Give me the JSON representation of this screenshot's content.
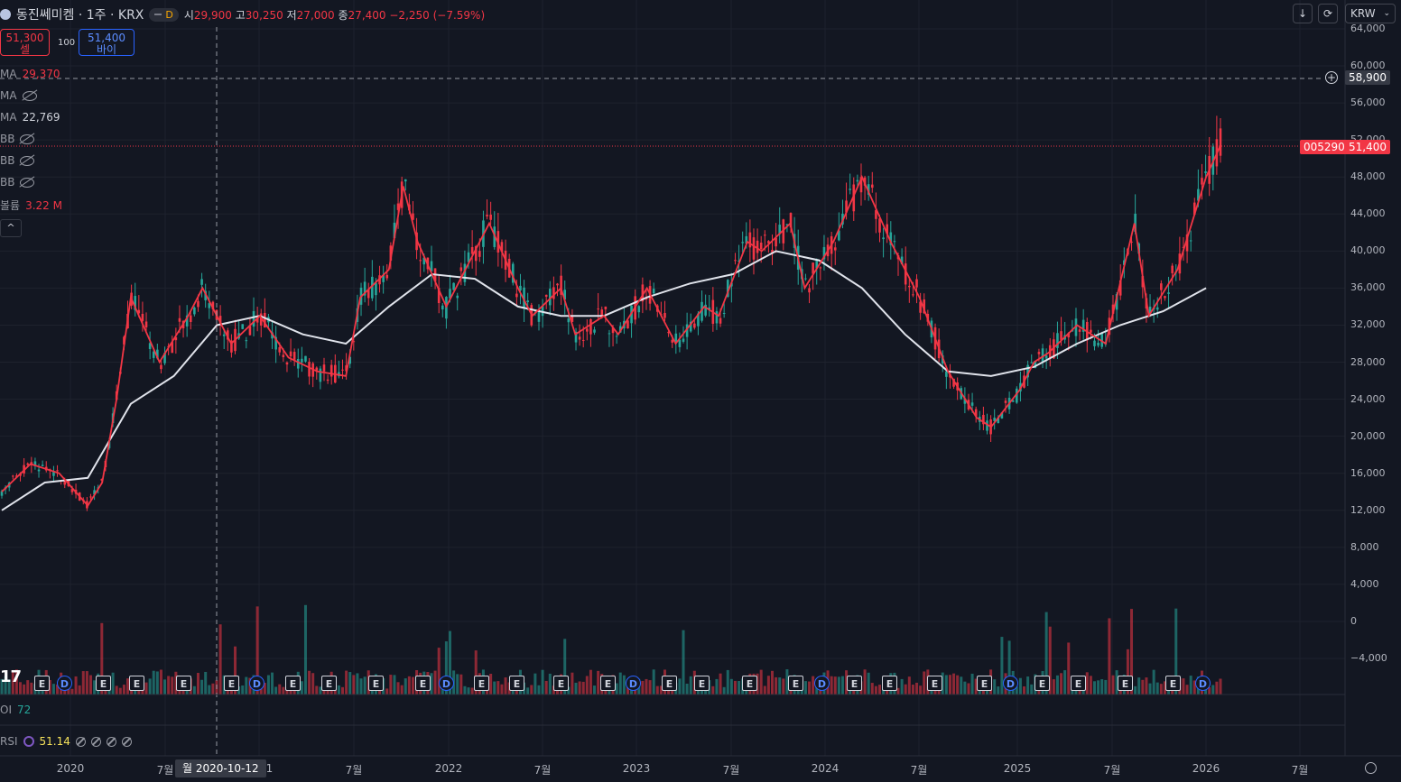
{
  "header": {
    "symbol": "동진쎄미켐 · 1주 · KRX",
    "interval_badge": "D",
    "open_label": "시",
    "open": "29,900",
    "high_label": "고",
    "high": "30,250",
    "low_label": "저",
    "low": "27,000",
    "close_label": "종",
    "close": "27,400",
    "change": "−2,250 (−7.59%)"
  },
  "trade": {
    "sell_price": "51,300",
    "sell_label": "셀",
    "spread": "100",
    "buy_price": "51,400",
    "buy_label": "바이"
  },
  "indicators": [
    {
      "name": "MA",
      "value": "29,370",
      "color": "#f23645",
      "visible": true
    },
    {
      "name": "MA",
      "value": "",
      "visible": false
    },
    {
      "name": "MA",
      "value": "22,769",
      "color": "#d1d4dc",
      "visible": true
    },
    {
      "name": "BB",
      "value": "",
      "visible": false
    },
    {
      "name": "BB",
      "value": "",
      "visible": false
    },
    {
      "name": "BB",
      "value": "",
      "visible": false
    },
    {
      "name": "볼륨",
      "value": "3.22 M",
      "color": "#f23645",
      "visible": true
    }
  ],
  "toolbar": {
    "currency": "KRW"
  },
  "price_tags": {
    "crosshair_price": "58,900",
    "symbol_code": "005290",
    "last_price": "51,400"
  },
  "crosshair_date": "월 2020-10-12",
  "panes": {
    "oi_label": "OI",
    "oi_value": "72",
    "rsi_label": "RSI",
    "rsi_value": "51.14"
  },
  "colors": {
    "up": "#26a69a",
    "down": "#f23645",
    "ma_fast": "#f23645",
    "ma_slow": "#e0e3eb",
    "background": "#131722"
  },
  "chart_data": {
    "type": "candlestick",
    "y_axis_ticks": [
      "64,000",
      "60,000",
      "56,000",
      "52,000",
      "48,000",
      "44,000",
      "40,000",
      "36,000",
      "32,000",
      "28,000",
      "24,000",
      "20,000",
      "16,000",
      "12,000",
      "8,000",
      "4,000",
      "0",
      "−4,000"
    ],
    "x_axis_ticks": [
      "2020",
      "7월",
      "2021",
      "7월",
      "2022",
      "7월",
      "2023",
      "7월",
      "2024",
      "7월",
      "2025",
      "7월",
      "2026",
      "7월"
    ],
    "ylim": [
      -4000,
      64000
    ],
    "price_series_ma_fast": [
      [
        "2020-01",
        14000
      ],
      [
        "2020-03",
        17000
      ],
      [
        "2020-05",
        16000
      ],
      [
        "2020-07",
        12500
      ],
      [
        "2020-08",
        15000
      ],
      [
        "2020-09",
        24000
      ],
      [
        "2020-10",
        35000
      ],
      [
        "2020-12",
        28000
      ],
      [
        "2021-02",
        33000
      ],
      [
        "2021-03",
        36000
      ],
      [
        "2021-05",
        30000
      ],
      [
        "2021-07",
        33000
      ],
      [
        "2021-09",
        28500
      ],
      [
        "2021-11",
        27000
      ],
      [
        "2022-01",
        26500
      ],
      [
        "2022-02",
        35000
      ],
      [
        "2022-04",
        38000
      ],
      [
        "2022-05",
        47000
      ],
      [
        "2022-06",
        41000
      ],
      [
        "2022-08",
        34000
      ],
      [
        "2022-10",
        40000
      ],
      [
        "2022-11",
        43000
      ],
      [
        "2023-01",
        36000
      ],
      [
        "2023-02",
        33000
      ],
      [
        "2023-04",
        36000
      ],
      [
        "2023-05",
        31000
      ],
      [
        "2023-07",
        33000
      ],
      [
        "2023-08",
        31000
      ],
      [
        "2023-10",
        36000
      ],
      [
        "2023-12",
        30000
      ],
      [
        "2024-02",
        34000
      ],
      [
        "2024-03",
        33000
      ],
      [
        "2024-05",
        41000
      ],
      [
        "2024-06",
        40000
      ],
      [
        "2024-08",
        43000
      ],
      [
        "2024-09",
        36000
      ],
      [
        "2024-11",
        41000
      ],
      [
        "2025-01",
        48000
      ],
      [
        "2025-03",
        41000
      ],
      [
        "2025-05",
        35000
      ],
      [
        "2025-07",
        27000
      ],
      [
        "2025-09",
        22000
      ],
      [
        "2025-10",
        21000
      ],
      [
        "2025-12",
        25000
      ],
      [
        "2026-01",
        28000
      ],
      [
        "2026-02",
        29000
      ],
      [
        "2026-04",
        32000
      ],
      [
        "2026-06",
        30000
      ],
      [
        "2026-08",
        43000
      ],
      [
        "2026-09",
        33000
      ],
      [
        "2026-11",
        38000
      ],
      [
        "2027-01",
        48000
      ],
      [
        "2027-02",
        51400
      ]
    ],
    "price_series_ma_slow": [
      [
        "2020-01",
        12000
      ],
      [
        "2020-04",
        15000
      ],
      [
        "2020-07",
        15500
      ],
      [
        "2020-10",
        23500
      ],
      [
        "2021-01",
        26500
      ],
      [
        "2021-04",
        32000
      ],
      [
        "2021-07",
        33000
      ],
      [
        "2021-10",
        31000
      ],
      [
        "2022-01",
        30000
      ],
      [
        "2022-04",
        34000
      ],
      [
        "2022-07",
        37500
      ],
      [
        "2022-10",
        37000
      ],
      [
        "2023-01",
        34000
      ],
      [
        "2023-04",
        33000
      ],
      [
        "2023-07",
        33000
      ],
      [
        "2023-10",
        35000
      ],
      [
        "2024-01",
        36500
      ],
      [
        "2024-04",
        37500
      ],
      [
        "2024-07",
        40000
      ],
      [
        "2024-10",
        39000
      ],
      [
        "2025-01",
        36000
      ],
      [
        "2025-04",
        31000
      ],
      [
        "2025-07",
        27000
      ],
      [
        "2025-10",
        26500
      ],
      [
        "2026-01",
        27500
      ],
      [
        "2026-04",
        30000
      ],
      [
        "2026-07",
        32000
      ],
      [
        "2026-10",
        33500
      ],
      [
        "2027-01",
        36000
      ]
    ],
    "last_price": 51400,
    "series": [
      {
        "name": "MA",
        "value_label": "29,370"
      },
      {
        "name": "MA",
        "value_label": "22,769"
      }
    ]
  }
}
